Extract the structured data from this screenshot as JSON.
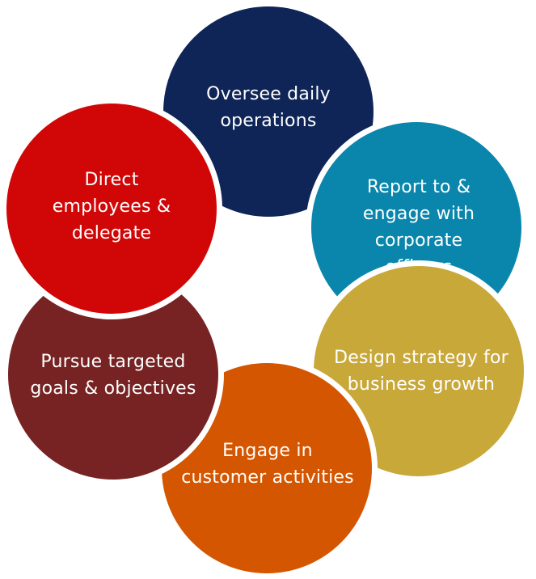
{
  "diagram": {
    "nodes": [
      {
        "id": "oversee",
        "label": "Oversee daily\noperations",
        "color": "#0f2557"
      },
      {
        "id": "report",
        "label": "Report to &\nengage with\ncorporate\nofficers",
        "color": "#0a86ac"
      },
      {
        "id": "design",
        "label": "Design strategy for\nbusiness growth",
        "color": "#c9a83a"
      },
      {
        "id": "engage",
        "label": "Engage in\ncustomer activities",
        "color": "#d55600"
      },
      {
        "id": "pursue",
        "label": "Pursue targeted\ngoals & objectives",
        "color": "#772323"
      },
      {
        "id": "direct",
        "label": "Direct\nemployees &\ndelegate",
        "color": "#d10707"
      }
    ]
  }
}
